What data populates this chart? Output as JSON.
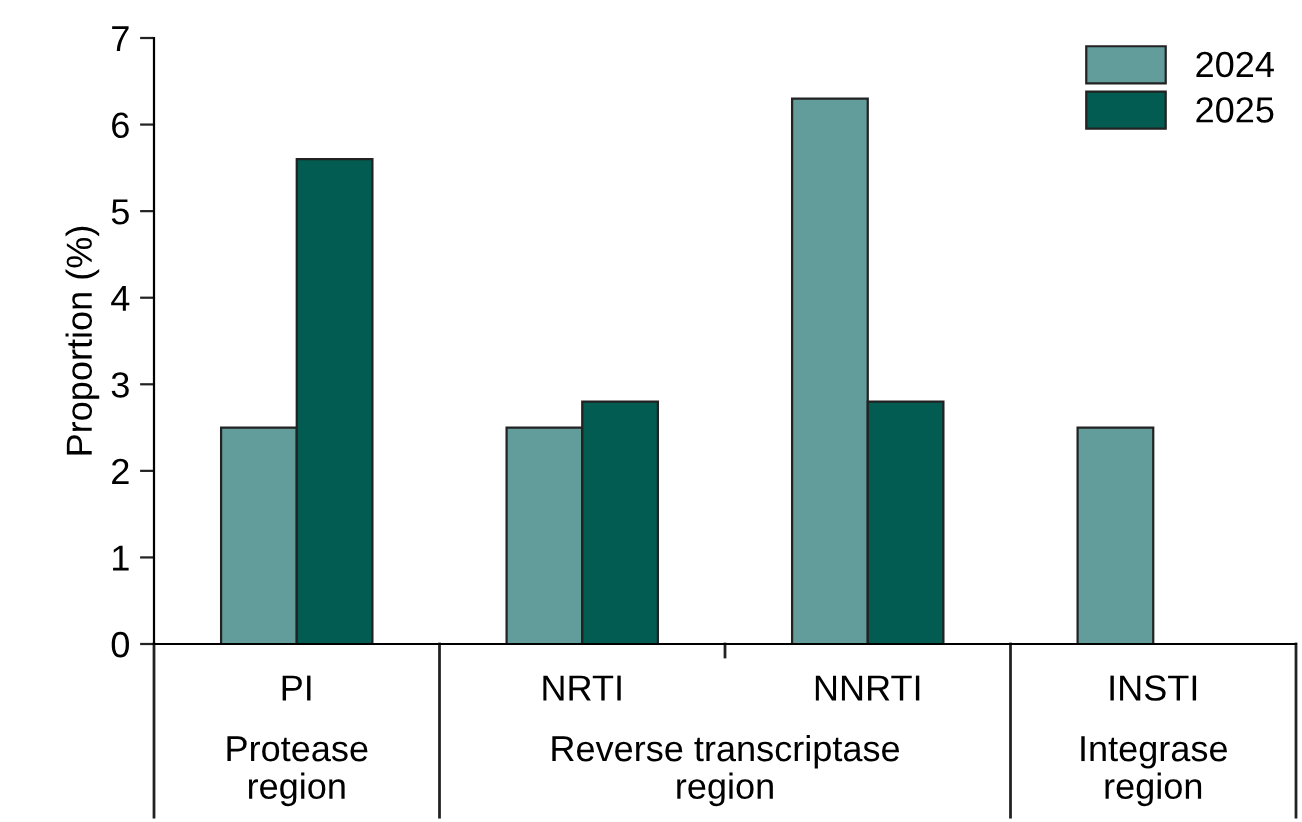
{
  "chart_data": {
    "type": "bar",
    "ylabel": "Proportion (%)",
    "categories": [
      "PI",
      "NRTI",
      "NNRTI",
      "INSTI"
    ],
    "series": [
      {
        "name": "2024",
        "color": "#629d9b",
        "values": [
          2.5,
          2.5,
          6.3,
          2.5
        ]
      },
      {
        "name": "2025",
        "color": "#035c52",
        "values": [
          5.6,
          2.8,
          2.8,
          null
        ]
      }
    ],
    "ylim": [
      0,
      7
    ],
    "yticks": [
      0,
      1,
      2,
      3,
      4,
      5,
      6,
      7
    ],
    "grid": false,
    "legend": "top right",
    "annotations": [
      "Protease\nregion",
      "Reverse transcriptase\nregion",
      "Integrase\nregion"
    ]
  }
}
